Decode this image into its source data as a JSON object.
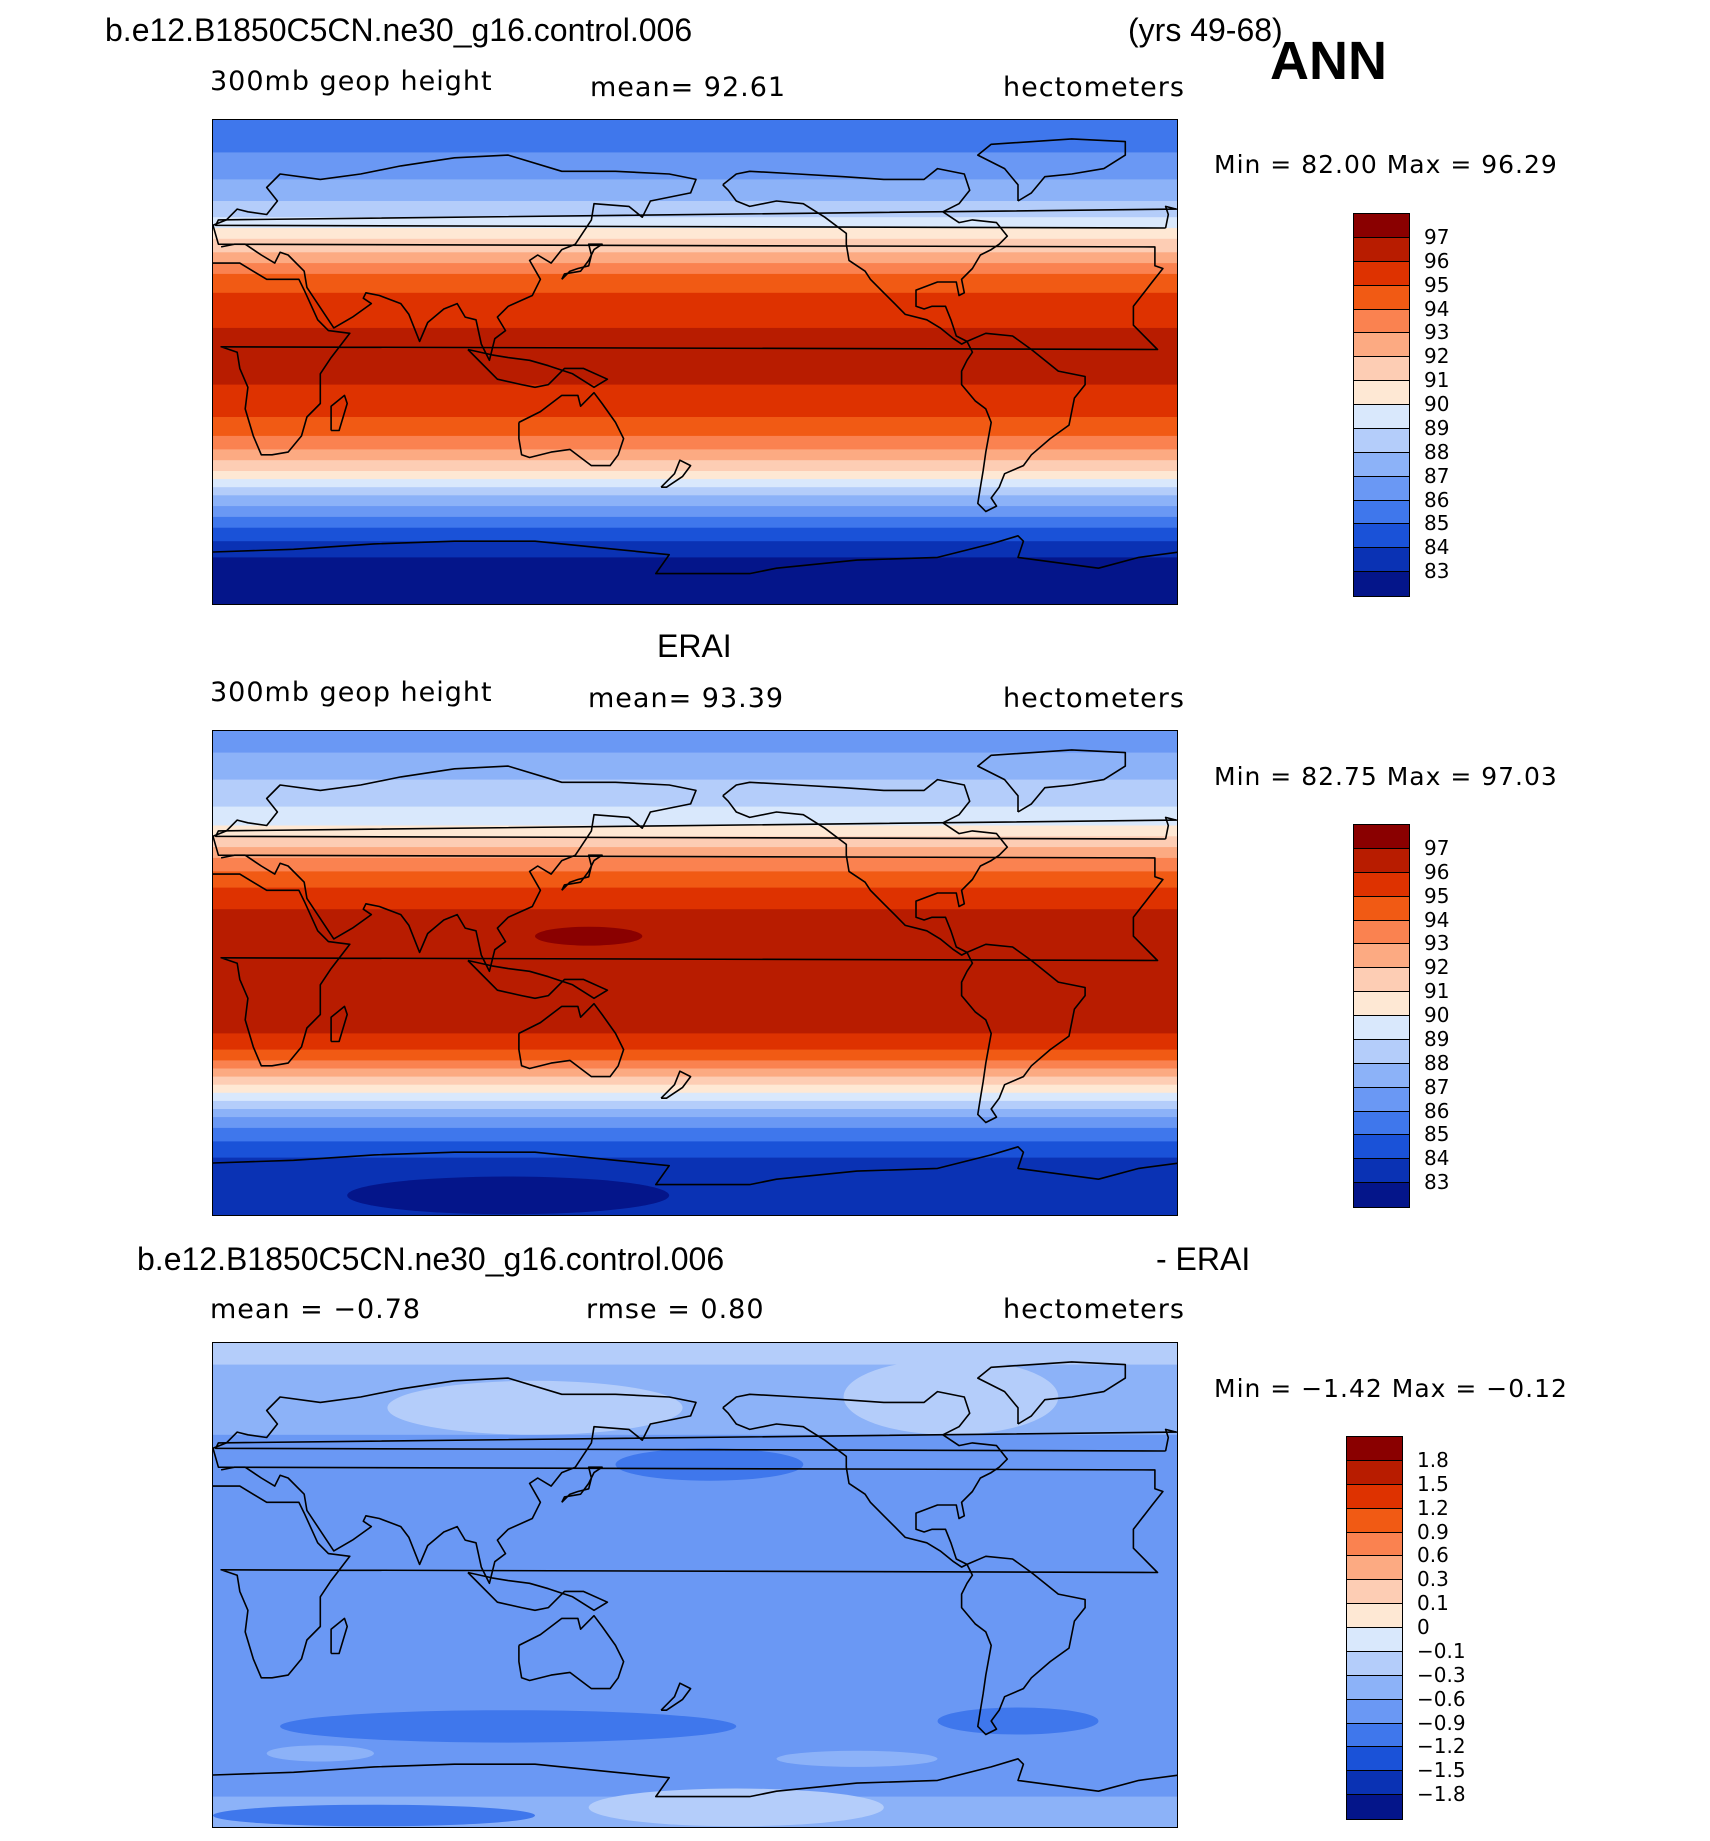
{
  "header": {
    "case_name": "b.e12.B1850C5CN.ne30_g16.control.006",
    "years": "(yrs 49-68)",
    "season": "ANN"
  },
  "panels": [
    {
      "title": "",
      "variable": "300mb geop height",
      "stat": "mean=   92.61",
      "units": "hectometers",
      "minmax": "Min =   82.00  Max =   96.29",
      "colorbar_labels": [
        "97",
        "96",
        "95",
        "94",
        "93",
        "92",
        "91",
        "90",
        "89",
        "88",
        "87",
        "86",
        "85",
        "84",
        "83"
      ],
      "colorbar_colors": [
        "#8a0000",
        "#b81c00",
        "#de3200",
        "#f15a14",
        "#fa8250",
        "#fcaa82",
        "#fdcdb4",
        "#fee8d4",
        "#d9e8fc",
        "#b4cdfa",
        "#8cb2f8",
        "#6a98f4",
        "#3f77ec",
        "#1a52d8",
        "#0a32b4",
        "#04158a"
      ],
      "map": {
        "bands": [
          {
            "lat": 90,
            "color": "#3f77ec"
          },
          {
            "lat": 78,
            "color": "#6a98f4"
          },
          {
            "lat": 68,
            "color": "#8cb2f8"
          },
          {
            "lat": 60,
            "color": "#b4cdfa"
          },
          {
            "lat": 54,
            "color": "#d9e8fc"
          },
          {
            "lat": 50,
            "color": "#fee8d4"
          },
          {
            "lat": 46,
            "color": "#fdcdb4"
          },
          {
            "lat": 41,
            "color": "#fcaa82"
          },
          {
            "lat": 37,
            "color": "#fa8250"
          },
          {
            "lat": 33,
            "color": "#f15a14"
          },
          {
            "lat": 26,
            "color": "#de3200"
          },
          {
            "lat": 13,
            "color": "#b81c00"
          },
          {
            "lat": -8,
            "color": "#de3200"
          },
          {
            "lat": -20,
            "color": "#f15a14"
          },
          {
            "lat": -27,
            "color": "#fa8250"
          },
          {
            "lat": -32,
            "color": "#fcaa82"
          },
          {
            "lat": -36,
            "color": "#fdcdb4"
          },
          {
            "lat": -40,
            "color": "#fee8d4"
          },
          {
            "lat": -43,
            "color": "#d9e8fc"
          },
          {
            "lat": -46,
            "color": "#b4cdfa"
          },
          {
            "lat": -49,
            "color": "#8cb2f8"
          },
          {
            "lat": -53,
            "color": "#6a98f4"
          },
          {
            "lat": -57,
            "color": "#3f77ec"
          },
          {
            "lat": -61,
            "color": "#1a52d8"
          },
          {
            "lat": -66,
            "color": "#0a32b4"
          },
          {
            "lat": -72,
            "color": "#04158a"
          }
        ],
        "blobs": []
      }
    },
    {
      "title": "ERAI",
      "variable": "300mb geop height",
      "stat": "mean=   93.39",
      "units": "hectometers",
      "minmax": "Min =   82.75  Max =   97.03",
      "colorbar_labels": [
        "97",
        "96",
        "95",
        "94",
        "93",
        "92",
        "91",
        "90",
        "89",
        "88",
        "87",
        "86",
        "85",
        "84",
        "83"
      ],
      "colorbar_colors": [
        "#8a0000",
        "#b81c00",
        "#de3200",
        "#f15a14",
        "#fa8250",
        "#fcaa82",
        "#fdcdb4",
        "#fee8d4",
        "#d9e8fc",
        "#b4cdfa",
        "#8cb2f8",
        "#6a98f4",
        "#3f77ec",
        "#1a52d8",
        "#0a32b4",
        "#04158a"
      ],
      "map": {
        "bands": [
          {
            "lat": 90,
            "color": "#6a98f4"
          },
          {
            "lat": 82,
            "color": "#8cb2f8"
          },
          {
            "lat": 72,
            "color": "#b4cdfa"
          },
          {
            "lat": 62,
            "color": "#d9e8fc"
          },
          {
            "lat": 55,
            "color": "#fee8d4"
          },
          {
            "lat": 51,
            "color": "#fdcdb4"
          },
          {
            "lat": 47,
            "color": "#fcaa82"
          },
          {
            "lat": 43,
            "color": "#fa8250"
          },
          {
            "lat": 38,
            "color": "#f15a14"
          },
          {
            "lat": 32,
            "color": "#de3200"
          },
          {
            "lat": 24,
            "color": "#b81c00"
          },
          {
            "lat": -22,
            "color": "#de3200"
          },
          {
            "lat": -28,
            "color": "#f15a14"
          },
          {
            "lat": -32,
            "color": "#fa8250"
          },
          {
            "lat": -35,
            "color": "#fcaa82"
          },
          {
            "lat": -38,
            "color": "#fdcdb4"
          },
          {
            "lat": -41,
            "color": "#fee8d4"
          },
          {
            "lat": -44,
            "color": "#d9e8fc"
          },
          {
            "lat": -47,
            "color": "#b4cdfa"
          },
          {
            "lat": -50,
            "color": "#8cb2f8"
          },
          {
            "lat": -53,
            "color": "#6a98f4"
          },
          {
            "lat": -57,
            "color": "#3f77ec"
          },
          {
            "lat": -62,
            "color": "#1a52d8"
          },
          {
            "lat": -68,
            "color": "#0a32b4"
          }
        ],
        "blobs": [
          {
            "lon": 140,
            "lat": 14,
            "rlon": 20,
            "rlat": 3.5,
            "color": "#8a0000"
          },
          {
            "lon": 110,
            "lat": -82,
            "rlon": 60,
            "rlat": 7,
            "color": "#04158a"
          }
        ]
      }
    },
    {
      "title": "- ERAI",
      "case_name": "b.e12.B1850C5CN.ne30_g16.control.006",
      "variable": "mean =   −0.78",
      "stat": "rmse =    0.80",
      "units": "hectometers",
      "minmax": "Min =   −1.42  Max =   −0.12",
      "colorbar_labels": [
        "1.8",
        "1.5",
        "1.2",
        "0.9",
        "0.6",
        "0.3",
        "0.1",
        "0",
        "−0.1",
        "−0.3",
        "−0.6",
        "−0.9",
        "−1.2",
        "−1.5",
        "−1.8"
      ],
      "colorbar_colors": [
        "#8a0000",
        "#b81c00",
        "#de3200",
        "#f15a14",
        "#fa8250",
        "#fcaa82",
        "#fdcdb4",
        "#fee8d4",
        "#d9e8fc",
        "#b4cdfa",
        "#8cb2f8",
        "#6a98f4",
        "#3f77ec",
        "#1a52d8",
        "#0a32b4",
        "#04158a"
      ],
      "map": {
        "bands": [
          {
            "lat": 90,
            "color": "#b4cdfa"
          },
          {
            "lat": 82,
            "color": "#8cb2f8"
          },
          {
            "lat": 56,
            "color": "#6a98f4"
          },
          {
            "lat": -78,
            "color": "#8cb2f8"
          }
        ],
        "blobs": [
          {
            "lon": 120,
            "lat": 66,
            "rlon": 55,
            "rlat": 10,
            "color": "#b4cdfa"
          },
          {
            "lon": 275,
            "lat": 70,
            "rlon": 40,
            "rlat": 14,
            "color": "#b4cdfa"
          },
          {
            "lon": 185,
            "lat": 45,
            "rlon": 35,
            "rlat": 6,
            "color": "#3f77ec"
          },
          {
            "lon": 110,
            "lat": -52,
            "rlon": 85,
            "rlat": 6,
            "color": "#3f77ec"
          },
          {
            "lon": 300,
            "lat": -50,
            "rlon": 30,
            "rlat": 5,
            "color": "#3f77ec"
          },
          {
            "lon": 60,
            "lat": -85,
            "rlon": 60,
            "rlat": 4,
            "color": "#3f77ec"
          },
          {
            "lon": 195,
            "lat": -82,
            "rlon": 55,
            "rlat": 7,
            "color": "#b4cdfa"
          },
          {
            "lon": 40,
            "lat": -62,
            "rlon": 20,
            "rlat": 3,
            "color": "#8cb2f8"
          },
          {
            "lon": 240,
            "lat": -64,
            "rlon": 30,
            "rlat": 3,
            "color": "#8cb2f8"
          }
        ]
      }
    }
  ]
}
